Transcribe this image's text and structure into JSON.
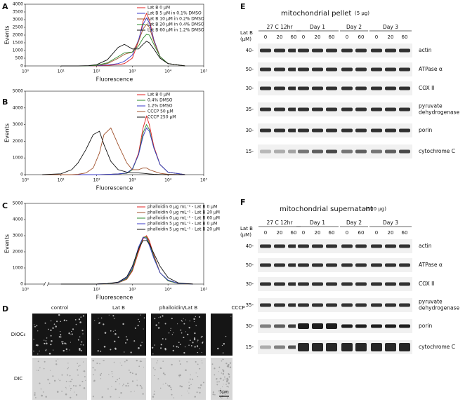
{
  "chart_data": [
    {
      "type": "line",
      "label": "A",
      "xlabel": "Fluorescence",
      "ylabel": "Events",
      "log_x": true,
      "legend": "upper right",
      "xlim": [
        1,
        100000
      ],
      "xticks": [
        {
          "value": 1,
          "label": "10⁰"
        },
        {
          "value": 10,
          "label": "10¹"
        },
        {
          "value": 100,
          "label": "10²"
        },
        {
          "value": 1000,
          "label": "10³"
        },
        {
          "value": 10000,
          "label": "10⁴"
        },
        {
          "value": 100000,
          "label": "10⁵"
        }
      ],
      "ylim": [
        0,
        4000
      ],
      "yticks": [
        0,
        500,
        1000,
        1500,
        2000,
        2500,
        3000,
        3500,
        4000
      ],
      "x": [
        10,
        30,
        60,
        100,
        200,
        400,
        600,
        1000,
        1500,
        2000,
        2500,
        3000,
        4000,
        6000,
        10000,
        30000
      ],
      "series": [
        {
          "name": "Lat B 0 μM",
          "color": "#e02020",
          "values": [
            0,
            0,
            0,
            10,
            30,
            80,
            150,
            500,
            1600,
            2900,
            3400,
            3000,
            1700,
            600,
            150,
            0
          ]
        },
        {
          "name": "Lat B 5 μM in 0.1% DMSO",
          "color": "#3a3ac8",
          "values": [
            0,
            0,
            0,
            20,
            60,
            150,
            300,
            700,
            1700,
            2700,
            3100,
            2800,
            1700,
            600,
            150,
            0
          ]
        },
        {
          "name": "Lat B 10 μM in 0.2% DMSO",
          "color": "#a0522d",
          "values": [
            0,
            0,
            10,
            30,
            150,
            500,
            750,
            900,
            1600,
            2400,
            2700,
            2500,
            1600,
            600,
            150,
            0
          ]
        },
        {
          "name": "Lat B 20 μM in 0.4% DMSO",
          "color": "#2e8b2e",
          "values": [
            0,
            0,
            10,
            40,
            200,
            600,
            850,
            900,
            1300,
            1800,
            2050,
            2000,
            1400,
            600,
            150,
            0
          ]
        },
        {
          "name": "Lat B 60 μM in 1.2% DMSO",
          "color": "#111111",
          "values": [
            0,
            0,
            20,
            80,
            400,
            1200,
            1400,
            1100,
            1100,
            1400,
            1600,
            1500,
            1100,
            500,
            150,
            0
          ]
        }
      ]
    },
    {
      "type": "line",
      "label": "B",
      "xlabel": "Fluorescence",
      "ylabel": "Events",
      "log_x": true,
      "legend": "upper right",
      "xlim": [
        1,
        100000
      ],
      "xticks": [
        {
          "value": 1,
          "label": "10⁰"
        },
        {
          "value": 10,
          "label": "10¹"
        },
        {
          "value": 100,
          "label": "10²"
        },
        {
          "value": 1000,
          "label": "10³"
        },
        {
          "value": 10000,
          "label": "10⁴"
        },
        {
          "value": 100000,
          "label": "10⁵"
        }
      ],
      "ylim": [
        0,
        5000
      ],
      "yticks": [
        0,
        1000,
        2000,
        3000,
        4000,
        5000
      ],
      "x": [
        3,
        10,
        20,
        30,
        50,
        80,
        120,
        160,
        250,
        400,
        700,
        1000,
        1500,
        2000,
        2500,
        3000,
        4000,
        6000,
        10000,
        30000
      ],
      "series": [
        {
          "name": "Lat B 0 μM",
          "color": "#e02020",
          "values": [
            0,
            0,
            0,
            0,
            0,
            0,
            0,
            10,
            20,
            40,
            80,
            300,
            1300,
            2800,
            3500,
            3000,
            1700,
            600,
            150,
            0
          ]
        },
        {
          "name": "0.4% DMSO",
          "color": "#2e8b2e",
          "values": [
            0,
            0,
            0,
            0,
            0,
            0,
            0,
            10,
            20,
            40,
            80,
            300,
            1200,
            2500,
            3000,
            2700,
            1600,
            600,
            150,
            0
          ]
        },
        {
          "name": "1.2% DMSO",
          "color": "#3a3ac8",
          "values": [
            0,
            0,
            0,
            0,
            0,
            0,
            0,
            10,
            20,
            40,
            100,
            350,
            1200,
            2300,
            2800,
            2600,
            1600,
            600,
            150,
            0
          ]
        },
        {
          "name": "CCCP 50 μM",
          "color": "#a0522d",
          "values": [
            0,
            0,
            0,
            20,
            100,
            400,
            1300,
            2400,
            2800,
            1800,
            700,
            300,
            300,
            400,
            400,
            300,
            200,
            80,
            20,
            0
          ]
        },
        {
          "name": "CCCP 250 μM",
          "color": "#111111",
          "values": [
            0,
            50,
            300,
            700,
            1500,
            2400,
            2600,
            1800,
            800,
            300,
            150,
            100,
            100,
            80,
            60,
            40,
            20,
            10,
            0,
            0
          ]
        }
      ]
    },
    {
      "type": "line",
      "label": "C",
      "xlabel": "Fluorescence",
      "ylabel": "Events",
      "log_x": true,
      "legend": "upper right",
      "xlim": [
        1,
        100000
      ],
      "xticks": [
        {
          "value": 1,
          "label": "10⁰"
        },
        {
          "value": 100,
          "label": "10²"
        },
        {
          "value": 1000,
          "label": "10³"
        },
        {
          "value": 10000,
          "label": "10⁴"
        },
        {
          "value": 100000,
          "label": "10⁵"
        }
      ],
      "ylim": [
        0,
        5000
      ],
      "yticks": [
        0,
        1000,
        2000,
        3000,
        4000,
        5000
      ],
      "x": [
        10,
        30,
        100,
        200,
        400,
        700,
        1000,
        1500,
        2000,
        2500,
        3000,
        4000,
        6000,
        10000,
        20000,
        50000
      ],
      "series": [
        {
          "name": "phalloidin 0 μg mL⁻¹ - Lat B 0 μM",
          "color": "#e02020",
          "values": [
            0,
            0,
            0,
            20,
            80,
            300,
            800,
            2000,
            2800,
            3000,
            2700,
            1800,
            700,
            200,
            30,
            0
          ]
        },
        {
          "name": "phalloidin 0 μg mL⁻¹ - Lat B 20 μM",
          "color": "#a0522d",
          "values": [
            0,
            0,
            0,
            20,
            80,
            300,
            850,
            2100,
            2900,
            2950,
            2600,
            1700,
            700,
            200,
            30,
            0
          ]
        },
        {
          "name": "phalloidin 0 μg mL⁻¹ - Lat B 60 μM",
          "color": "#2e8b2e",
          "values": [
            0,
            0,
            0,
            20,
            90,
            350,
            900,
            2200,
            2900,
            2900,
            2500,
            1700,
            700,
            200,
            30,
            0
          ]
        },
        {
          "name": "phalloidin 5 μg mL⁻¹ - Lat B 0 μM",
          "color": "#3a3ac8",
          "values": [
            0,
            0,
            0,
            30,
            100,
            400,
            1000,
            2300,
            2900,
            2800,
            2400,
            1600,
            700,
            250,
            40,
            0
          ]
        },
        {
          "name": "phalloidin 5 μg mL⁻¹ - Lat B 20 μM",
          "color": "#111111",
          "values": [
            0,
            0,
            0,
            30,
            120,
            450,
            1100,
            2200,
            2700,
            2700,
            2500,
            1900,
            1100,
            400,
            60,
            0
          ]
        }
      ]
    }
  ],
  "panel_d": {
    "label": "D",
    "columns": [
      "control",
      "Lat B",
      "phalloidin/Lat B",
      "CCCP"
    ],
    "rows": [
      "DiOC₆",
      "DIC"
    ],
    "scale_bar": "5μm"
  },
  "blots": [
    {
      "label": "E",
      "title": "mitochondrial pellet",
      "amount": "(5 μg)",
      "treatment": "Lat B",
      "unit": "(μM)",
      "groups": [
        {
          "name": "27 C 12hr",
          "lanes": [
            0,
            20,
            60
          ]
        },
        {
          "name": "Day 1",
          "lanes": [
            0,
            20,
            60
          ]
        },
        {
          "name": "Day 2",
          "lanes": [
            0,
            60
          ]
        },
        {
          "name": "Day 3",
          "lanes": [
            0,
            20,
            60
          ]
        }
      ],
      "rows": [
        {
          "marker": "40-",
          "protein": [
            "actin"
          ]
        },
        {
          "marker": "50-",
          "protein": [
            "ATPase α"
          ]
        },
        {
          "marker": "30-",
          "protein": [
            "COX II"
          ]
        },
        {
          "marker": "35-",
          "protein": [
            "pyruvate",
            "dehydrogenase"
          ]
        },
        {
          "marker": "30-",
          "protein": [
            "porin"
          ]
        },
        {
          "marker": "15-",
          "protein": [
            "cytochrome C"
          ]
        }
      ]
    },
    {
      "label": "F",
      "title": "mitochondrial supernatant",
      "amount": "(500 μg)",
      "treatment": "Lat B",
      "unit": "(μM)",
      "groups": [
        {
          "name": "27 C 12hr",
          "lanes": [
            0,
            20,
            60
          ]
        },
        {
          "name": "Day 1",
          "lanes": [
            0,
            20,
            60
          ]
        },
        {
          "name": "Day 2",
          "lanes": [
            0,
            60
          ]
        },
        {
          "name": "Day 3",
          "lanes": [
            0,
            20,
            60
          ]
        }
      ],
      "rows": [
        {
          "marker": "40-",
          "protein": [
            "actin"
          ]
        },
        {
          "marker": "50-",
          "protein": [
            "ATPase α"
          ]
        },
        {
          "marker": "30-",
          "protein": [
            "COX II"
          ]
        },
        {
          "marker": "35-",
          "protein": [
            "pyruvate",
            "dehydrogenase"
          ]
        },
        {
          "marker": "30-",
          "protein": [
            "porin"
          ]
        },
        {
          "marker": "15-",
          "protein": [
            "cytochrome C"
          ]
        }
      ]
    }
  ]
}
